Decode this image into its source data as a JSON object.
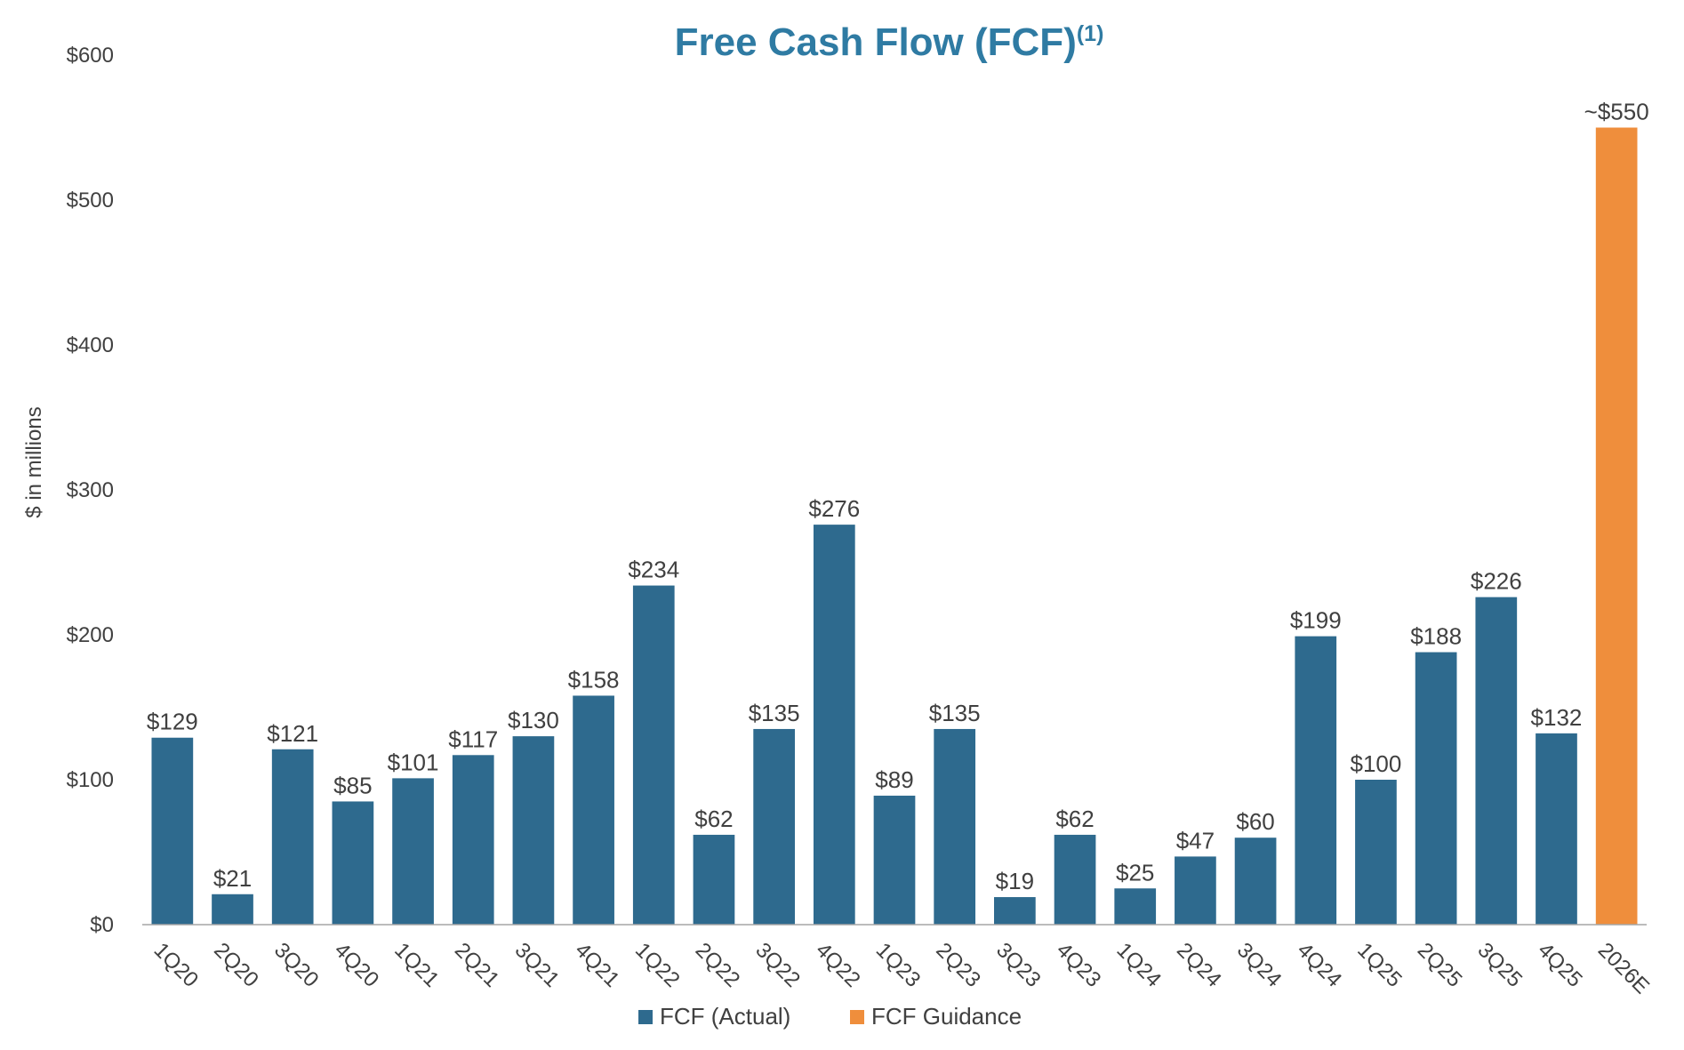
{
  "chart_data": {
    "type": "bar",
    "title": "Free Cash Flow (FCF)",
    "title_superscript": "(1)",
    "ylabel": "$ in millions",
    "xlabel": "",
    "ylim": [
      0,
      600
    ],
    "y_ticks": [
      0,
      100,
      200,
      300,
      400,
      500,
      600
    ],
    "y_tick_labels": [
      "$0",
      "$100",
      "$200",
      "$300",
      "$400",
      "$500",
      "$600"
    ],
    "categories": [
      "1Q20",
      "2Q20",
      "3Q20",
      "4Q20",
      "1Q21",
      "2Q21",
      "3Q21",
      "4Q21",
      "1Q22",
      "2Q22",
      "3Q22",
      "4Q22",
      "1Q23",
      "2Q23",
      "3Q23",
      "4Q23",
      "1Q24",
      "2Q24",
      "3Q24",
      "4Q24",
      "1Q25",
      "2Q25",
      "3Q25",
      "4Q25",
      "2026E"
    ],
    "values": [
      129,
      21,
      121,
      85,
      101,
      117,
      130,
      158,
      234,
      62,
      135,
      276,
      89,
      135,
      19,
      62,
      25,
      47,
      60,
      199,
      100,
      188,
      226,
      132,
      550
    ],
    "data_labels": [
      "$129",
      "$21",
      "$121",
      "$85",
      "$101",
      "$117",
      "$130",
      "$158",
      "$234",
      "$62",
      "$135",
      "$276",
      "$89",
      "$135",
      "$19",
      "$62",
      "$25",
      "$47",
      "$60",
      "$199",
      "$100",
      "$188",
      "$226",
      "$132",
      "~$550"
    ],
    "series": [
      {
        "name": "FCF (Actual)",
        "color": "#2E6A8E",
        "indices": [
          0,
          1,
          2,
          3,
          4,
          5,
          6,
          7,
          8,
          9,
          10,
          11,
          12,
          13,
          14,
          15,
          16,
          17,
          18,
          19,
          20,
          21,
          22,
          23
        ]
      },
      {
        "name": "FCF Guidance",
        "color": "#EF8E3C",
        "indices": [
          24
        ]
      }
    ],
    "legend": {
      "position": "bottom-center",
      "items": [
        "FCF (Actual)",
        "FCF Guidance"
      ]
    },
    "grid": false,
    "colors": {
      "title": "#2F7BA3",
      "text": "#404040",
      "axis": "#a6a6a6"
    }
  }
}
